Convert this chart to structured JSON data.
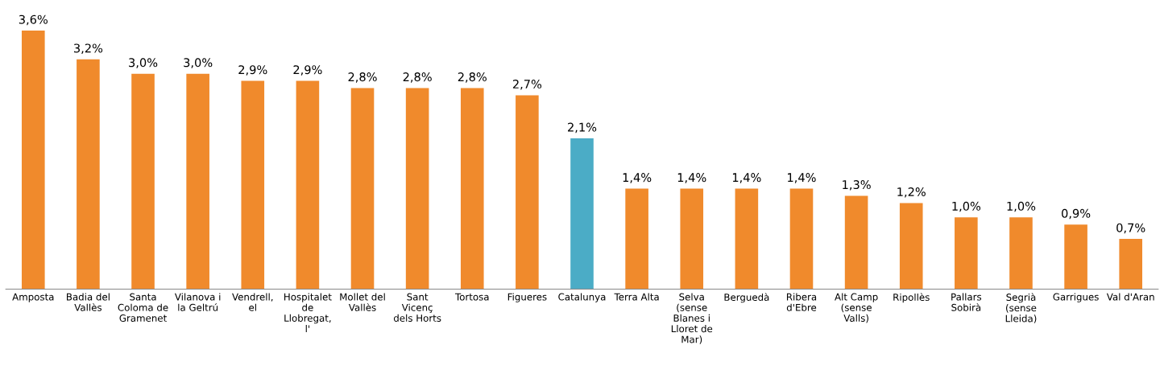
{
  "chart_data": {
    "type": "bar",
    "categories": [
      "Amposta",
      "Badia del Vallès",
      "Santa Coloma de Gramenet",
      "Vilanova i la Geltrú",
      "Vendrell, el",
      "Hospitalet de Llobregat, l'",
      "Mollet del Vallès",
      "Sant Vicenç dels Horts",
      "Tortosa",
      "Figueres",
      "Catalunya",
      "Terra Alta",
      "Selva (sense Blanes i Lloret de Mar)",
      "Berguedà",
      "Ribera d'Ebre",
      "Alt Camp (sense Valls)",
      "Ripollès",
      "Pallars Sobirà",
      "Segrià (sense Lleida)",
      "Garrigues",
      "Val d'Aran"
    ],
    "values": [
      3.6,
      3.2,
      3.0,
      3.0,
      2.9,
      2.9,
      2.8,
      2.8,
      2.8,
      2.7,
      2.1,
      1.4,
      1.4,
      1.4,
      1.4,
      1.3,
      1.2,
      1.0,
      1.0,
      0.9,
      0.7
    ],
    "value_labels": [
      "3,6%",
      "3,2%",
      "3,0%",
      "3,0%",
      "2,9%",
      "2,9%",
      "2,8%",
      "2,8%",
      "2,8%",
      "2,7%",
      "2,1%",
      "1,4%",
      "1,4%",
      "1,4%",
      "1,4%",
      "1,3%",
      "1,2%",
      "1,0%",
      "1,0%",
      "0,9%",
      "0,7%"
    ],
    "colors": [
      "#f08a2c",
      "#f08a2c",
      "#f08a2c",
      "#f08a2c",
      "#f08a2c",
      "#f08a2c",
      "#f08a2c",
      "#f08a2c",
      "#f08a2c",
      "#f08a2c",
      "#4bacc6",
      "#f08a2c",
      "#f08a2c",
      "#f08a2c",
      "#f08a2c",
      "#f08a2c",
      "#f08a2c",
      "#f08a2c",
      "#f08a2c",
      "#f08a2c",
      "#f08a2c"
    ],
    "grid": false,
    "legend": false
  }
}
